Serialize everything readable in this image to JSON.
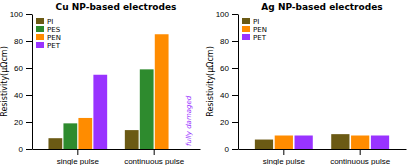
{
  "chart_data": [
    {
      "type": "bar",
      "title": "Cu NP-based electrodes",
      "y_label": "Resistivity(μΩcm)",
      "categories": [
        "single pulse",
        "continuous pulse"
      ],
      "series": [
        {
          "name": "PI",
          "color": "#6b5a14",
          "values": [
            8,
            14
          ]
        },
        {
          "name": "PES",
          "color": "#2e8b2e",
          "values": [
            19,
            59
          ]
        },
        {
          "name": "PEN",
          "color": "#ff8c00",
          "values": [
            23,
            85
          ]
        },
        {
          "name": "PET",
          "color": "#9933ff",
          "values": [
            55,
            0
          ]
        }
      ],
      "ylim": [
        0,
        100
      ],
      "yticks": [
        0,
        20,
        40,
        60,
        80,
        100
      ],
      "grid": false,
      "legend": "upper left",
      "annotations": [
        {
          "text": "fully damaged",
          "color": "#9933ff"
        }
      ]
    },
    {
      "type": "bar",
      "title": "Ag NP-based electrodes",
      "y_label": "Resistivity(μΩcm)",
      "categories": [
        "single pulse",
        "continuous pulse"
      ],
      "series": [
        {
          "name": "PI",
          "color": "#6b5a14",
          "values": [
            7,
            11
          ]
        },
        {
          "name": "PEN",
          "color": "#ff8c00",
          "values": [
            10,
            10
          ]
        },
        {
          "name": "PET",
          "color": "#9933ff",
          "values": [
            10,
            10
          ]
        }
      ],
      "ylim": [
        0,
        100
      ],
      "yticks": [
        0,
        20,
        40,
        60,
        80,
        100
      ],
      "grid": false,
      "legend": "upper left"
    }
  ]
}
